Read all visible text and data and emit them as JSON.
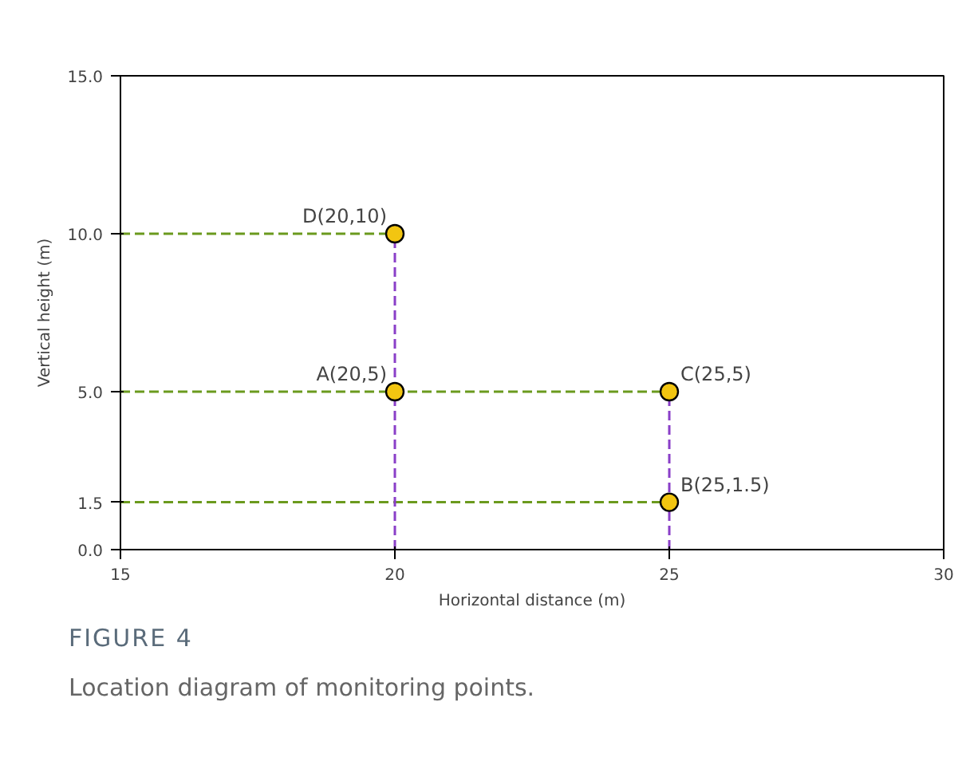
{
  "chart_data": {
    "type": "scatter",
    "xlabel": "Horizontal distance (m)",
    "ylabel": "Vertical height (m)",
    "xlim": [
      15,
      30
    ],
    "ylim": [
      0,
      15
    ],
    "xticks": [
      15,
      20,
      25,
      30
    ],
    "yticks": [
      {
        "value": 0,
        "label": "0.0"
      },
      {
        "value": 1.5,
        "label": "1.5"
      },
      {
        "value": 5,
        "label": "5.0"
      },
      {
        "value": 10,
        "label": "10.0"
      },
      {
        "value": 15,
        "label": "15.0"
      }
    ],
    "grid": false,
    "marker": "circle",
    "series": [
      {
        "type": "line",
        "color": "#6b9a1e",
        "line_style": "dashed",
        "marker": "none",
        "x": [
          15,
          20
        ],
        "values": [
          10,
          10
        ]
      },
      {
        "type": "line",
        "color": "#6b9a1e",
        "line_style": "dashed",
        "marker": "none",
        "x": [
          15,
          25
        ],
        "values": [
          5,
          5
        ]
      },
      {
        "type": "line",
        "color": "#6b9a1e",
        "line_style": "dashed",
        "marker": "none",
        "x": [
          15,
          25
        ],
        "values": [
          1.5,
          1.5
        ]
      },
      {
        "type": "line",
        "color": "#8a3fc8",
        "line_style": "dashed",
        "marker": "none",
        "x": [
          20,
          20
        ],
        "values": [
          0,
          10
        ]
      },
      {
        "type": "line",
        "color": "#8a3fc8",
        "line_style": "dashed",
        "marker": "none",
        "x": [
          25,
          25
        ],
        "values": [
          0,
          5
        ]
      },
      {
        "color": "#f2c511",
        "x": [
          20,
          25,
          25,
          20
        ],
        "values": [
          5,
          1.5,
          5,
          10
        ],
        "value_labels": [
          "A(20,5)",
          "B(25,1.5)",
          "C(25,5)",
          "D(20,10)"
        ]
      }
    ],
    "annotations": [
      "FIGURE 4",
      "Location diagram of monitoring points."
    ]
  }
}
